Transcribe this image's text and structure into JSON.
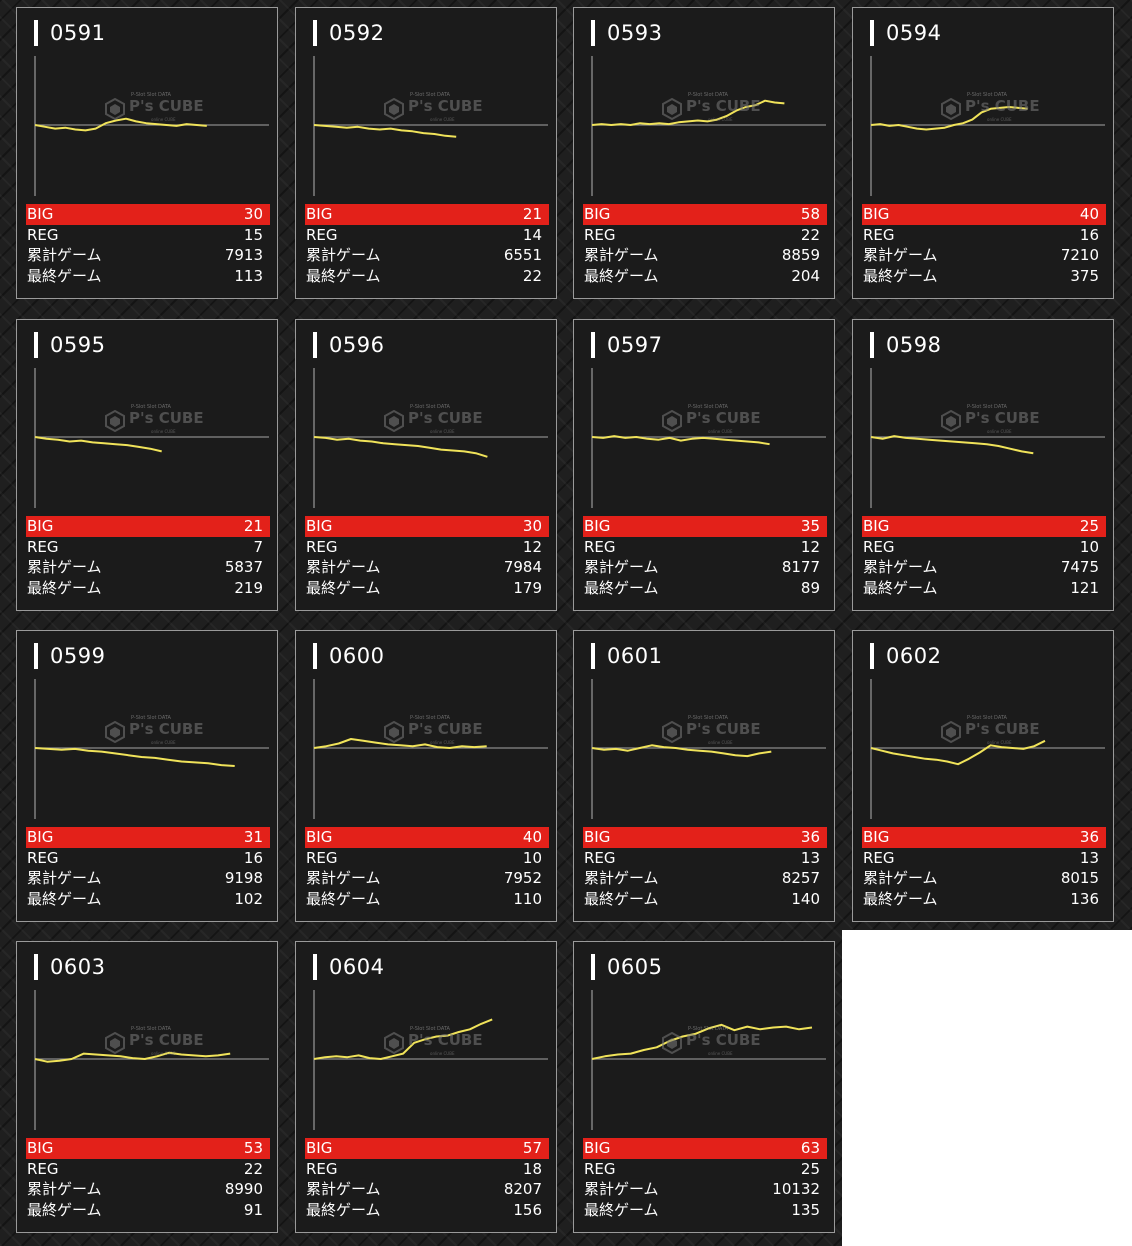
{
  "colors": {
    "graph_line": "#f0e35a",
    "big_bar": "#e3211a",
    "baseline": "#8a8a8a"
  },
  "watermark": {
    "brand": "P's CUBE",
    "top_line": "P-Slot Slot DATA",
    "bottom_line": "online CUBE"
  },
  "labels": {
    "big": "BIG",
    "reg": "REG",
    "total_games": "累計ゲーム",
    "last_games": "最終ゲーム"
  },
  "machines": [
    {
      "id": "0591",
      "big": "30",
      "reg": "15",
      "total": "7913",
      "last": "113",
      "graph": [
        0,
        -2,
        -4,
        -3,
        -5,
        -6,
        -4,
        2,
        5,
        7,
        4,
        2,
        1,
        0,
        -1,
        1,
        0,
        -1
      ]
    },
    {
      "id": "0592",
      "big": "21",
      "reg": "14",
      "total": "6551",
      "last": "22",
      "graph": [
        0,
        -1,
        -2,
        -3,
        -2,
        -4,
        -5,
        -4,
        -6,
        -7,
        -9,
        -10,
        -12,
        -13
      ]
    },
    {
      "id": "0593",
      "big": "58",
      "reg": "22",
      "total": "8859",
      "last": "204",
      "graph": [
        0,
        1,
        0,
        1,
        0,
        2,
        1,
        2,
        1,
        3,
        4,
        5,
        4,
        6,
        10,
        16,
        20,
        22,
        27,
        25,
        24
      ]
    },
    {
      "id": "0594",
      "big": "40",
      "reg": "16",
      "total": "7210",
      "last": "375",
      "graph": [
        0,
        1,
        -1,
        0,
        -2,
        -4,
        -5,
        -4,
        -3,
        0,
        2,
        6,
        14,
        18,
        19,
        20,
        19,
        18
      ]
    },
    {
      "id": "0595",
      "big": "21",
      "reg": "7",
      "total": "5837",
      "last": "219",
      "graph": [
        0,
        -2,
        -3,
        -5,
        -4,
        -6,
        -7,
        -8,
        -9,
        -11,
        -13,
        -16
      ]
    },
    {
      "id": "0596",
      "big": "30",
      "reg": "12",
      "total": "7984",
      "last": "179",
      "graph": [
        0,
        -1,
        -3,
        -2,
        -4,
        -5,
        -7,
        -8,
        -9,
        -10,
        -12,
        -14,
        -15,
        -16,
        -18,
        -22
      ]
    },
    {
      "id": "0597",
      "big": "35",
      "reg": "12",
      "total": "8177",
      "last": "89",
      "graph": [
        0,
        -1,
        1,
        -1,
        0,
        -2,
        -3,
        -1,
        -4,
        -2,
        -1,
        -2,
        -3,
        -4,
        -5,
        -6,
        -8
      ]
    },
    {
      "id": "0598",
      "big": "25",
      "reg": "10",
      "total": "7475",
      "last": "121",
      "graph": [
        0,
        -2,
        1,
        -1,
        -2,
        -3,
        -4,
        -5,
        -6,
        -7,
        -8,
        -10,
        -13,
        -16,
        -18
      ]
    },
    {
      "id": "0599",
      "big": "31",
      "reg": "16",
      "total": "9198",
      "last": "102",
      "graph": [
        0,
        -1,
        -2,
        -1,
        -3,
        -4,
        -6,
        -8,
        -10,
        -11,
        -13,
        -15,
        -16,
        -17,
        -19,
        -20
      ]
    },
    {
      "id": "0600",
      "big": "40",
      "reg": "10",
      "total": "7952",
      "last": "110",
      "graph": [
        0,
        2,
        5,
        10,
        8,
        6,
        4,
        3,
        2,
        4,
        1,
        0,
        2,
        1,
        2
      ]
    },
    {
      "id": "0601",
      "big": "36",
      "reg": "13",
      "total": "8257",
      "last": "140",
      "graph": [
        0,
        -2,
        -1,
        -3,
        0,
        3,
        1,
        0,
        -2,
        -3,
        -4,
        -6,
        -8,
        -9,
        -6,
        -4
      ]
    },
    {
      "id": "0602",
      "big": "36",
      "reg": "13",
      "total": "8015",
      "last": "136",
      "graph": [
        0,
        -3,
        -6,
        -8,
        -10,
        -12,
        -13,
        -15,
        -18,
        -12,
        -5,
        3,
        1,
        0,
        -1,
        2,
        8
      ]
    },
    {
      "id": "0603",
      "big": "53",
      "reg": "22",
      "total": "8990",
      "last": "91",
      "graph": [
        0,
        -3,
        -2,
        0,
        6,
        5,
        4,
        3,
        1,
        0,
        3,
        7,
        5,
        4,
        3,
        4,
        6
      ]
    },
    {
      "id": "0604",
      "big": "57",
      "reg": "18",
      "total": "8207",
      "last": "156",
      "graph": [
        0,
        2,
        3,
        2,
        4,
        1,
        0,
        3,
        6,
        18,
        22,
        25,
        26,
        30,
        33,
        39,
        44
      ]
    },
    {
      "id": "0605",
      "big": "63",
      "reg": "25",
      "total": "10132",
      "last": "135",
      "graph": [
        0,
        3,
        5,
        6,
        10,
        13,
        20,
        25,
        28,
        34,
        38,
        32,
        36,
        33,
        35,
        36,
        33,
        35
      ]
    }
  ]
}
